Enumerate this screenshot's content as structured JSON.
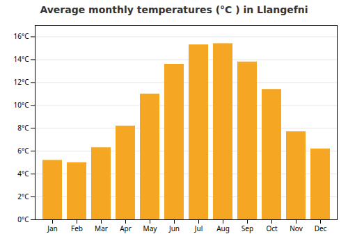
{
  "chart_data": {
    "type": "bar",
    "title": "Average monthly temperatures (°C ) in Llangefni",
    "categories": [
      "Jan",
      "Feb",
      "Mar",
      "Apr",
      "May",
      "Jun",
      "Jul",
      "Aug",
      "Sep",
      "Oct",
      "Nov",
      "Dec"
    ],
    "values": [
      5.2,
      5.0,
      6.3,
      8.2,
      11.0,
      13.6,
      15.3,
      15.4,
      13.8,
      11.4,
      7.7,
      6.2
    ],
    "color": "#F5A623",
    "ylim": [
      0,
      17.0
    ],
    "yticks": [
      {
        "value": 0,
        "label": "0°C"
      },
      {
        "value": 2,
        "label": "2°C"
      },
      {
        "value": 4,
        "label": "4°C"
      },
      {
        "value": 6,
        "label": "6°C"
      },
      {
        "value": 8,
        "label": "8°C"
      },
      {
        "value": 10,
        "label": "10°C"
      },
      {
        "value": 12,
        "label": "12°C"
      },
      {
        "value": 14,
        "label": "14°C"
      },
      {
        "value": 16,
        "label": "16°C"
      }
    ],
    "grid": true
  }
}
